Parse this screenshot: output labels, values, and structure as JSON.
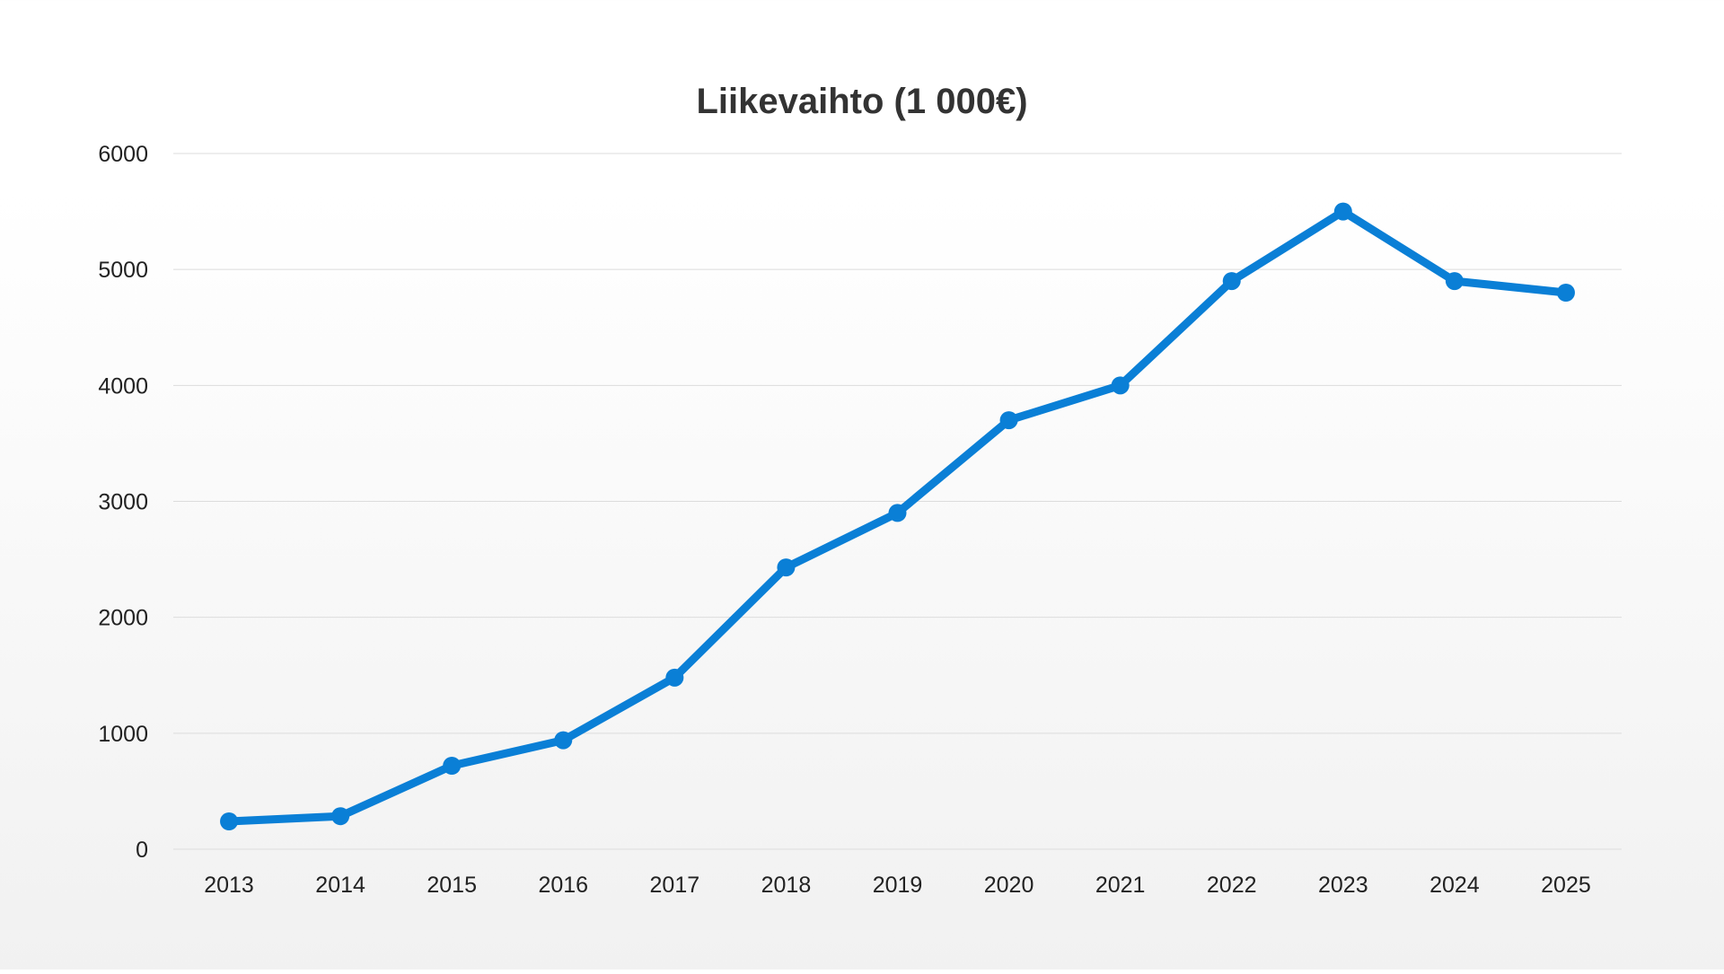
{
  "chart_data": {
    "type": "line",
    "title": "Liikevaihto (1 000€)",
    "xlabel": "",
    "ylabel": "",
    "categories": [
      "2013",
      "2014",
      "2015",
      "2016",
      "2017",
      "2018",
      "2019",
      "2020",
      "2021",
      "2022",
      "2023",
      "2024",
      "2025"
    ],
    "series": [
      {
        "values": [
          240,
          285,
          720,
          940,
          1480,
          2430,
          2900,
          3700,
          4000,
          4900,
          5500,
          4900,
          4800
        ]
      }
    ],
    "ylim": [
      0,
      6000
    ],
    "yticks": [
      "0",
      "1000",
      "2000",
      "3000",
      "4000",
      "5000",
      "6000"
    ],
    "grid": true,
    "legend": "none",
    "colors": {
      "line": "#0a7fd6",
      "grid": "#dcdcdc",
      "text": "#222222",
      "title": "#333333"
    }
  }
}
